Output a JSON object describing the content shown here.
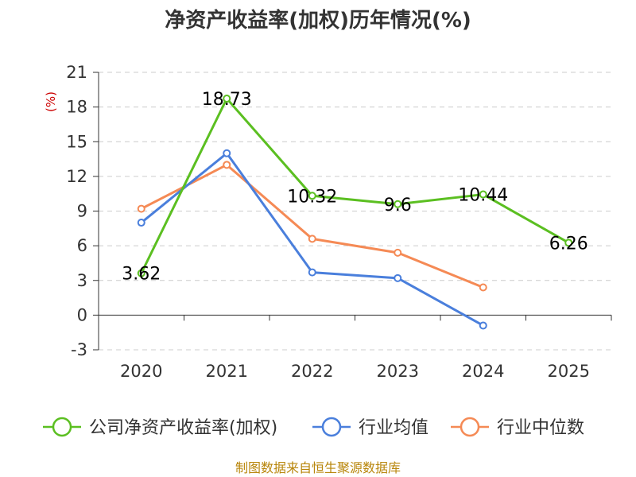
{
  "chart_data": {
    "type": "line",
    "title": "净资产收益率(加权)历年情况(%)",
    "ylabel": "(%)",
    "xlabel": "",
    "categories": [
      "2020",
      "2021",
      "2022",
      "2023",
      "2024",
      "2025"
    ],
    "ylim": [
      -3,
      21
    ],
    "yticks": [
      "21",
      "18",
      "15",
      "12",
      "9",
      "6",
      "3",
      "0",
      "-3"
    ],
    "ytick_values": [
      21,
      18,
      15,
      12,
      9,
      6,
      3,
      0,
      -3
    ],
    "grid": true,
    "legend_position": "bottom",
    "series": [
      {
        "name": "公司净资产收益率(加权)",
        "color": "#5bbf21",
        "values": [
          3.62,
          18.73,
          10.32,
          9.6,
          10.44,
          6.26
        ],
        "labels": [
          "3.62",
          "18.73",
          "10.32",
          "9.6",
          "10.44",
          "6.26"
        ]
      },
      {
        "name": "行业均值",
        "color": "#4a7fdc",
        "values": [
          8.0,
          14.0,
          3.7,
          3.2,
          -0.9,
          null
        ]
      },
      {
        "name": "行业中位数",
        "color": "#f58a55",
        "values": [
          9.2,
          13.0,
          6.6,
          5.4,
          2.4,
          null
        ]
      }
    ]
  },
  "footer": {
    "source": "制图数据来自恒生聚源数据库"
  }
}
